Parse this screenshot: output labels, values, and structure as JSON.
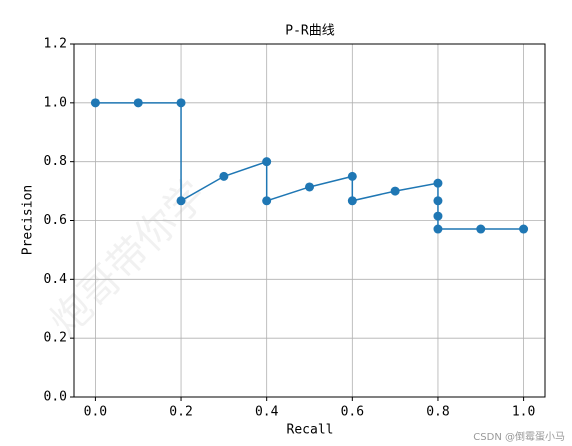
{
  "chart_data": {
    "type": "line",
    "title": "P-R曲线",
    "x_label": "Recall",
    "y_label": "Precision",
    "x": [
      0.0,
      0.1,
      0.2,
      0.2,
      0.3,
      0.4,
      0.4,
      0.5,
      0.6,
      0.6,
      0.7,
      0.8,
      0.8,
      0.8,
      0.8,
      0.9,
      1.0
    ],
    "values": [
      1.0,
      1.0,
      1.0,
      0.667,
      0.75,
      0.8,
      0.667,
      0.714,
      0.75,
      0.667,
      0.7,
      0.727,
      0.667,
      0.615,
      0.571,
      0.571,
      0.571
    ],
    "color": "#1f77b4",
    "xlim": [
      -0.05,
      1.05
    ],
    "xticks": [
      {
        "value": 0,
        "label": "0.0"
      },
      0.2,
      0.4,
      0.6,
      0.8,
      {
        "value": 1,
        "label": "1.0"
      }
    ],
    "ylim": [
      0,
      1.2
    ],
    "yticks": [
      {
        "value": 0,
        "label": "0.0"
      },
      0.2,
      0.4,
      0.6,
      0.8,
      {
        "value": 1,
        "label": "1.0"
      },
      1.2
    ],
    "grid": true,
    "watermarks": [
      "CSDN @倒霉蛋小马",
      "炮哥带你学"
    ]
  }
}
